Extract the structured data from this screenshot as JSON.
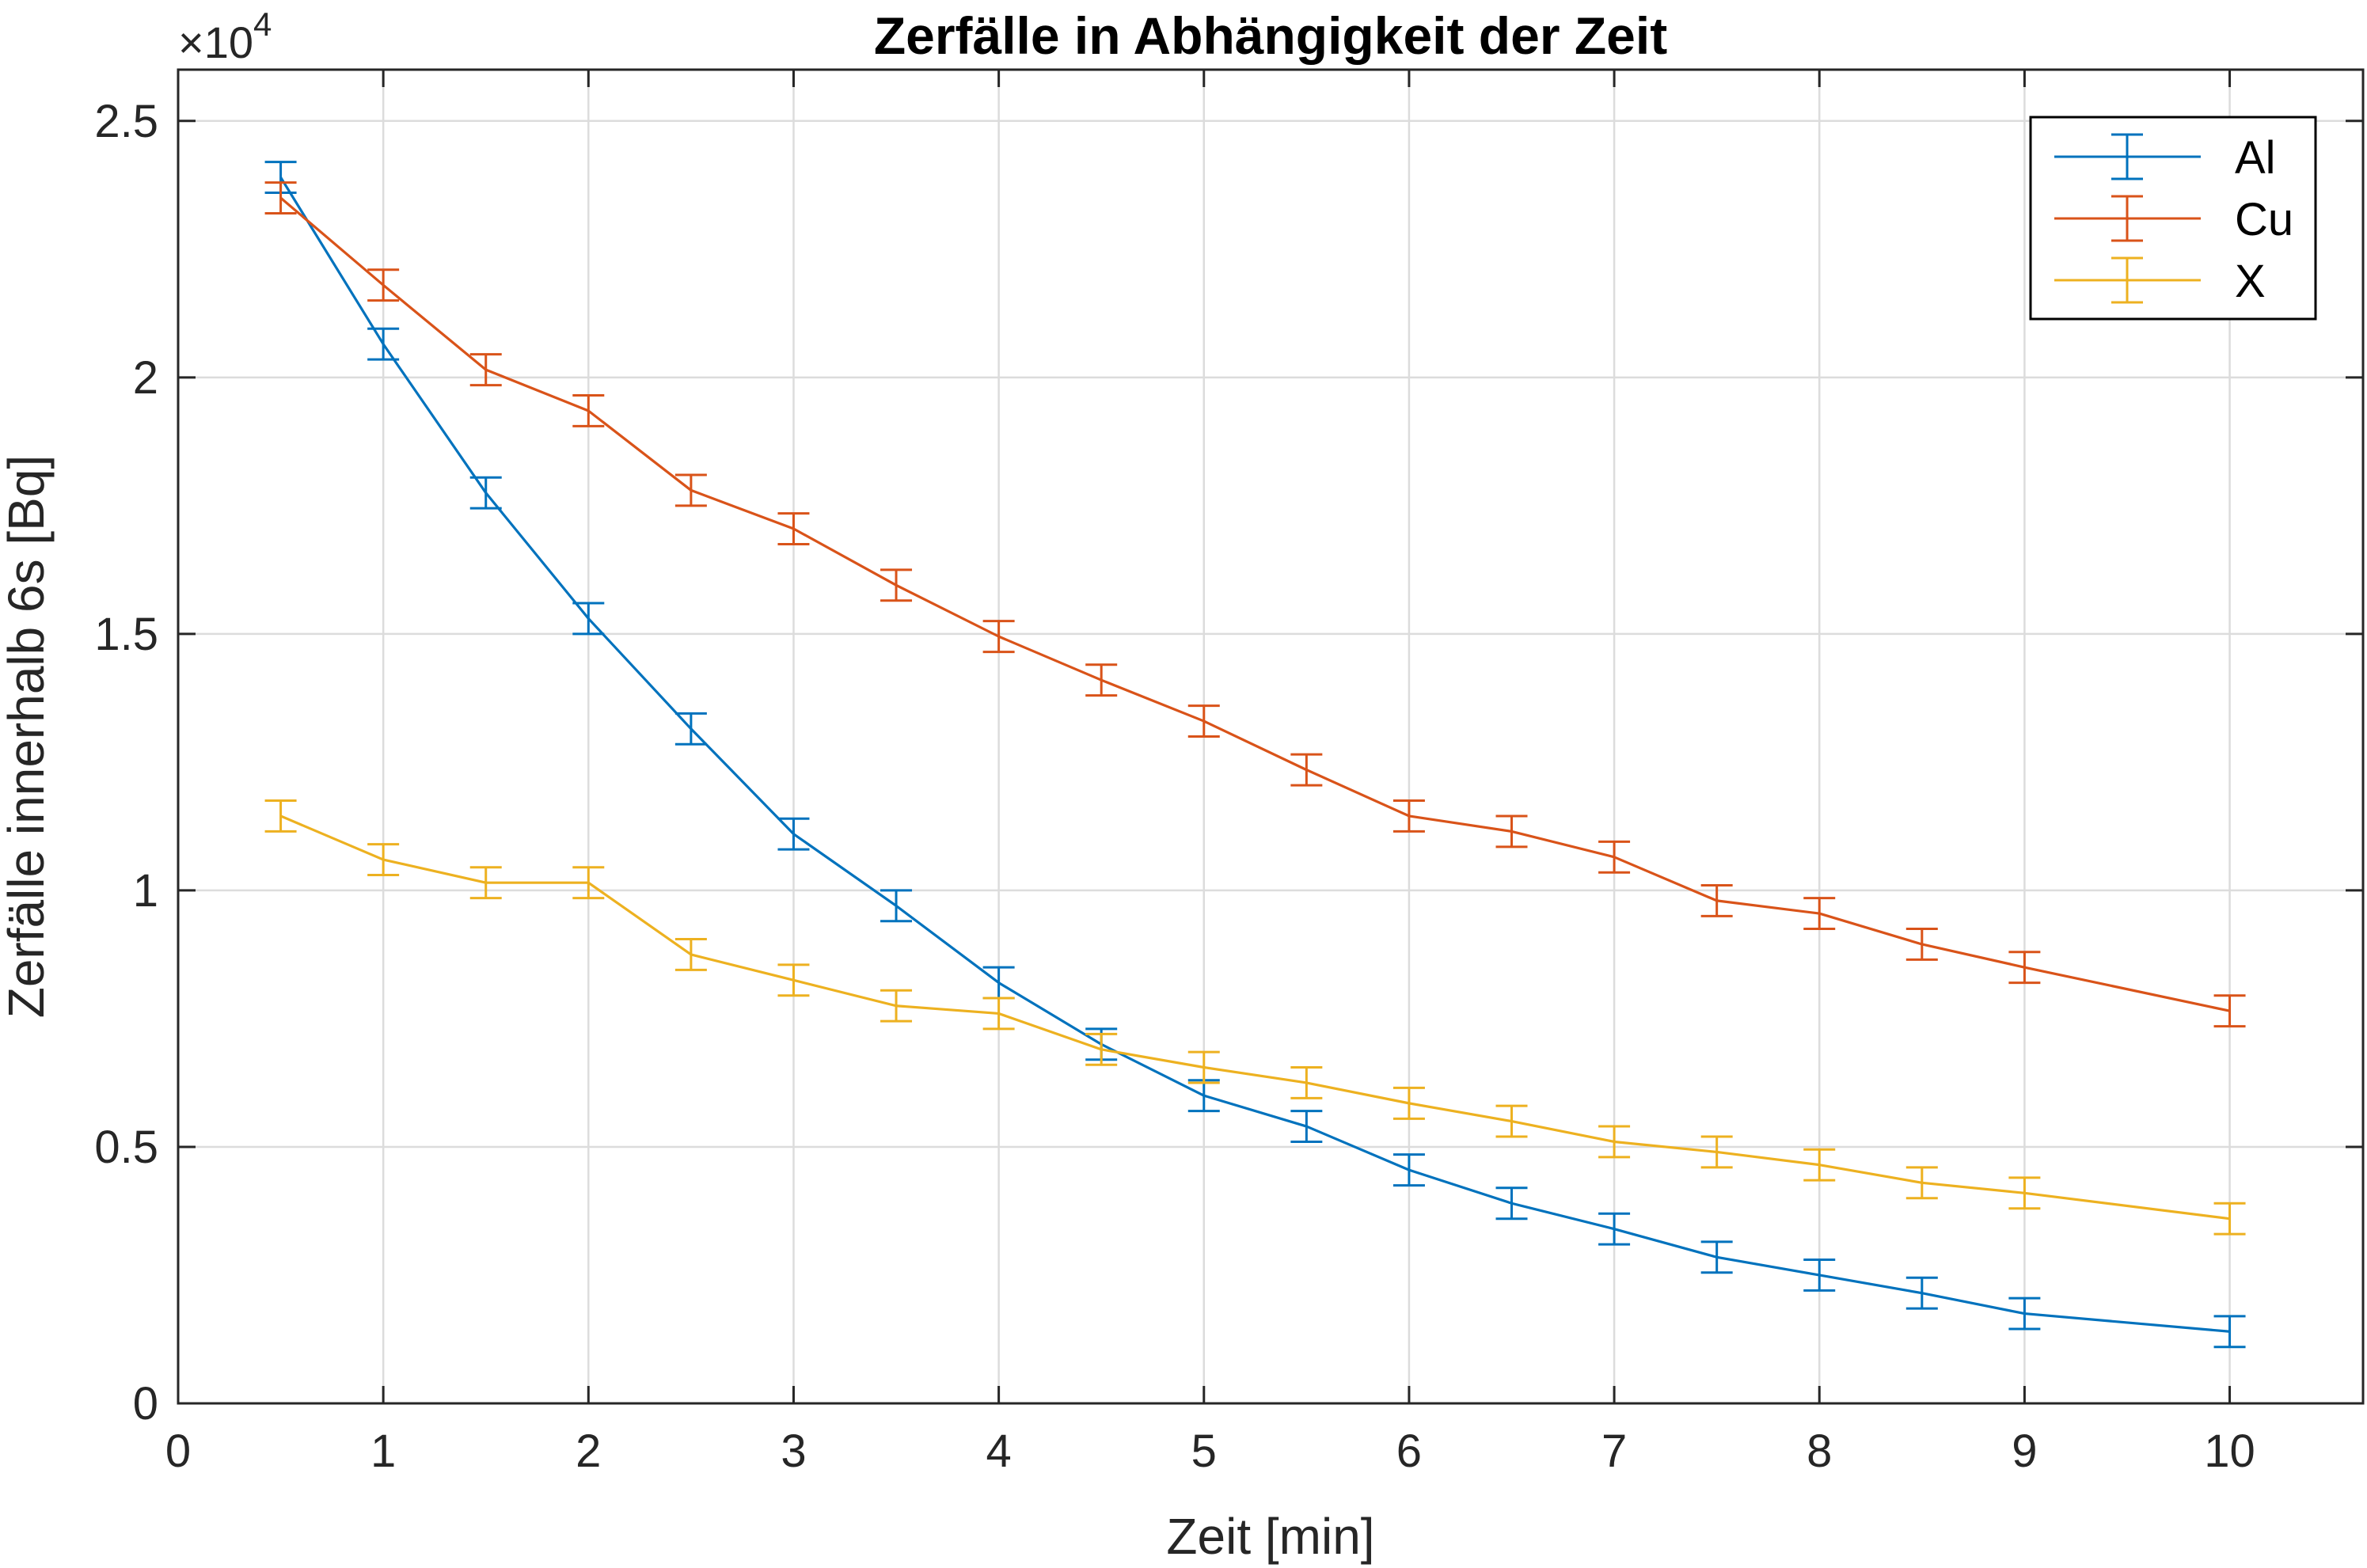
{
  "chart_data": {
    "type": "line",
    "title": "Zerfälle in Abhängigkeit der Zeit",
    "xlabel": "Zeit [min]",
    "ylabel": "Zerfälle innerhalb 6s [Bq]",
    "y_exponent_prefix": "×10",
    "y_exponent_power": "4",
    "xlim": [
      0,
      10.65
    ],
    "ylim": [
      0,
      2.6
    ],
    "x_ticks": [
      0,
      1,
      2,
      3,
      4,
      5,
      6,
      7,
      8,
      9,
      10
    ],
    "x_tick_labels": [
      "0",
      "1",
      "2",
      "3",
      "4",
      "5",
      "6",
      "7",
      "8",
      "9",
      "10"
    ],
    "y_ticks": [
      0,
      0.5,
      1,
      1.5,
      2,
      2.5
    ],
    "y_tick_labels": [
      "0",
      "0.5",
      "1",
      "1.5",
      "2",
      "2.5"
    ],
    "grid": true,
    "legend_position": "top-right",
    "error_bar_halfwidth": 0.03,
    "x": [
      0.5,
      1,
      1.5,
      2,
      2.5,
      3,
      3.5,
      4,
      4.5,
      5,
      5.5,
      6,
      6.5,
      7,
      7.5,
      8,
      8.5,
      9,
      10
    ],
    "series": [
      {
        "name": "Al",
        "color": "#0072BD",
        "values": [
          2.39,
          2.065,
          1.775,
          1.53,
          1.315,
          1.11,
          0.97,
          0.82,
          0.7,
          0.6,
          0.54,
          0.455,
          0.39,
          0.34,
          0.285,
          0.25,
          0.215,
          0.175,
          0.14
        ]
      },
      {
        "name": "Cu",
        "color": "#D95319",
        "values": [
          2.35,
          2.18,
          2.015,
          1.935,
          1.78,
          1.705,
          1.595,
          1.495,
          1.41,
          1.33,
          1.235,
          1.145,
          1.115,
          1.065,
          0.98,
          0.955,
          0.895,
          0.85,
          0.765
        ]
      },
      {
        "name": "X",
        "color": "#EDB120",
        "values": [
          1.145,
          1.06,
          1.015,
          1.015,
          0.875,
          0.825,
          0.775,
          0.76,
          0.69,
          0.655,
          0.625,
          0.585,
          0.55,
          0.51,
          0.49,
          0.465,
          0.43,
          0.41,
          0.36
        ]
      }
    ]
  }
}
